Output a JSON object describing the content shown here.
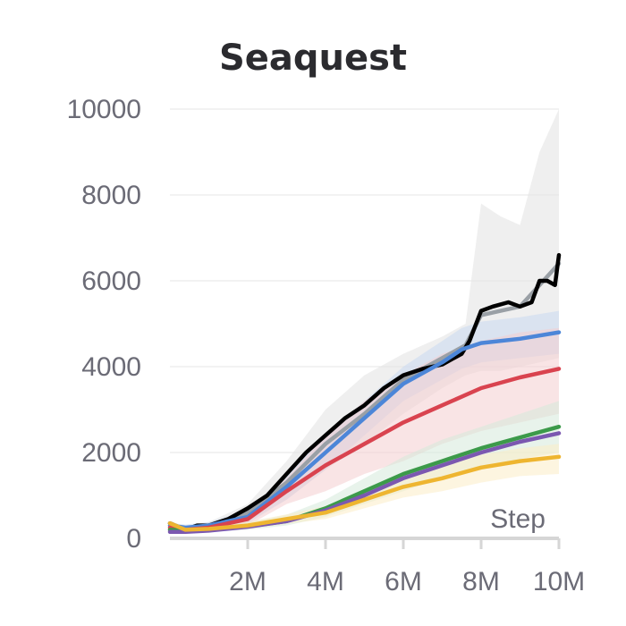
{
  "chart_data": {
    "type": "line",
    "title": "Seaquest",
    "xlabel": "Step",
    "ylabel": "",
    "xlim": [
      0,
      10000000
    ],
    "ylim": [
      0,
      10000
    ],
    "xticks": [
      2000000,
      4000000,
      6000000,
      8000000,
      10000000
    ],
    "xtick_labels": [
      "2M",
      "4M",
      "6M",
      "8M",
      "10M"
    ],
    "yticks": [
      0,
      2000,
      4000,
      6000,
      8000,
      10000
    ],
    "ytick_labels": [
      "0",
      "2000",
      "4000",
      "6000",
      "8000",
      "10000"
    ],
    "grid": true,
    "legend": "none",
    "series": [
      {
        "color": "#9aa0a6",
        "band_color": "#e2e2e2",
        "x": [
          0,
          400000,
          1000000,
          2000000,
          3000000,
          4000000,
          5000000,
          6000000,
          7000000,
          7600000,
          8000000,
          8500000,
          9000000,
          9500000,
          10000000
        ],
        "values": [
          200,
          180,
          300,
          600,
          1300,
          2200,
          2900,
          3700,
          4200,
          4500,
          5200,
          5300,
          5400,
          5900,
          6400
        ],
        "upper": [
          260,
          260,
          380,
          800,
          1800,
          3000,
          3800,
          4300,
          4700,
          5000,
          7800,
          7500,
          7300,
          9000,
          10000
        ],
        "lower": [
          140,
          120,
          220,
          400,
          900,
          1600,
          2200,
          2900,
          3500,
          3800,
          3900,
          3900,
          4000,
          4100,
          4200
        ]
      },
      {
        "color": "#000000",
        "x": [
          0,
          400000,
          700000,
          1000000,
          1500000,
          2000000,
          2500000,
          3000000,
          3500000,
          4000000,
          4500000,
          5000000,
          5500000,
          6000000,
          6500000,
          7000000,
          7500000,
          7700000,
          8000000,
          8300000,
          8700000,
          9000000,
          9300000,
          9500000,
          9700000,
          9900000,
          10000000
        ],
        "values": [
          350,
          200,
          300,
          300,
          450,
          700,
          1000,
          1500,
          2000,
          2400,
          2800,
          3100,
          3500,
          3800,
          3950,
          4050,
          4300,
          4600,
          5300,
          5400,
          5500,
          5400,
          5500,
          6000,
          6000,
          5900,
          6600
        ]
      },
      {
        "color": "#4c86d8",
        "band_color": "#c9d9f1",
        "x": [
          0,
          400000,
          1000000,
          2000000,
          3000000,
          4000000,
          5000000,
          6000000,
          7000000,
          7500000,
          8000000,
          9000000,
          10000000
        ],
        "values": [
          300,
          250,
          300,
          500,
          1200,
          2000,
          2800,
          3600,
          4100,
          4400,
          4550,
          4650,
          4800
        ],
        "upper": [
          360,
          320,
          380,
          650,
          1500,
          2400,
          3200,
          4000,
          4600,
          4900,
          5050,
          5150,
          5300
        ],
        "lower": [
          240,
          180,
          220,
          350,
          900,
          1600,
          2400,
          3200,
          3700,
          3950,
          4100,
          4200,
          4300
        ]
      },
      {
        "color": "#d9434f",
        "band_color": "#f4cdd0",
        "x": [
          0,
          400000,
          1000000,
          2000000,
          3000000,
          4000000,
          5000000,
          6000000,
          7000000,
          8000000,
          9000000,
          10000000
        ],
        "values": [
          250,
          200,
          250,
          450,
          1100,
          1700,
          2200,
          2700,
          3100,
          3500,
          3750,
          3950
        ],
        "upper": [
          320,
          270,
          320,
          600,
          1400,
          2400,
          3200,
          3800,
          4300,
          4600,
          4800,
          4900
        ],
        "lower": [
          180,
          130,
          180,
          300,
          800,
          1100,
          1500,
          1800,
          2200,
          2500,
          2700,
          2900
        ]
      },
      {
        "color": "#3c9a4a",
        "band_color": "#d6eadb",
        "x": [
          0,
          400000,
          1000000,
          2000000,
          3000000,
          4000000,
          5000000,
          6000000,
          7000000,
          8000000,
          9000000,
          10000000
        ],
        "values": [
          200,
          180,
          200,
          280,
          400,
          700,
          1100,
          1500,
          1800,
          2100,
          2350,
          2600
        ],
        "upper": [
          260,
          240,
          260,
          380,
          550,
          900,
          1400,
          1900,
          2300,
          2600,
          2900,
          3200
        ],
        "lower": [
          150,
          130,
          150,
          200,
          300,
          500,
          800,
          1100,
          1400,
          1600,
          1850,
          2000
        ]
      },
      {
        "color": "#7b58b0",
        "x": [
          0,
          400000,
          1000000,
          2000000,
          3000000,
          4000000,
          5000000,
          6000000,
          7000000,
          8000000,
          9000000,
          10000000
        ],
        "values": [
          150,
          150,
          180,
          270,
          400,
          650,
          1000,
          1400,
          1700,
          2000,
          2250,
          2450
        ]
      },
      {
        "color": "#eeb530",
        "band_color": "#fbedc6",
        "x": [
          0,
          400000,
          1000000,
          2000000,
          3000000,
          4000000,
          5000000,
          6000000,
          7000000,
          8000000,
          9000000,
          10000000
        ],
        "values": [
          350,
          200,
          220,
          300,
          450,
          600,
          900,
          1200,
          1400,
          1650,
          1800,
          1900
        ],
        "upper": [
          420,
          260,
          280,
          380,
          560,
          750,
          1100,
          1450,
          1700,
          1950,
          2100,
          2200
        ],
        "lower": [
          280,
          140,
          160,
          220,
          340,
          450,
          700,
          950,
          1100,
          1300,
          1450,
          1500
        ]
      }
    ]
  }
}
